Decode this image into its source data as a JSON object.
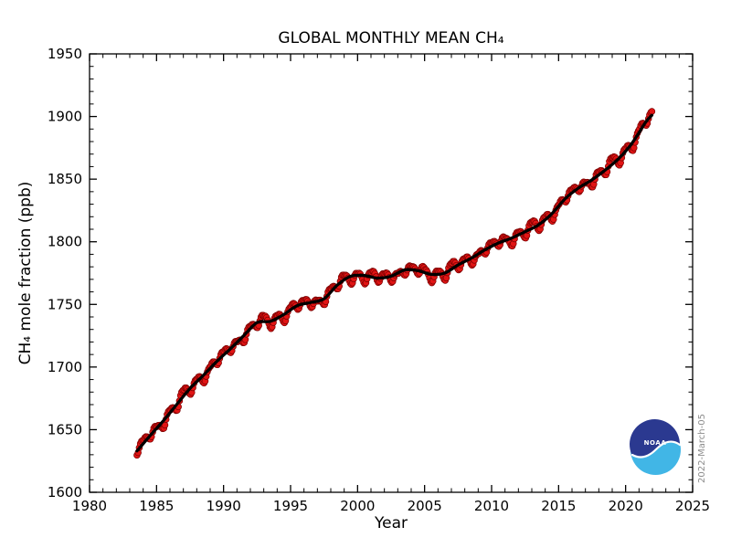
{
  "logo": {
    "text": "NOAA",
    "dark_color": "#2b3990",
    "light_color": "#41b6e6"
  },
  "chart_data": {
    "type": "scatter",
    "title": "GLOBAL MONTHLY MEAN CH₄",
    "xlabel": "Year",
    "ylabel": "CH₄ mole fraction (ppb)",
    "date_stamp": "2022-March-05",
    "xlim": [
      1980,
      2025
    ],
    "ylim": [
      1600,
      1950
    ],
    "x_major_ticks": [
      1980,
      1985,
      1990,
      1995,
      2000,
      2005,
      2010,
      2015,
      2020,
      2025
    ],
    "x_minor_step": 1,
    "y_major_ticks": [
      1600,
      1650,
      1700,
      1750,
      1800,
      1850,
      1900,
      1950
    ],
    "y_minor_step": 10,
    "grid": false,
    "legend": "none",
    "styles": {
      "dot_fill": "#e11414",
      "dot_edge": "#7a0000",
      "dot_radius": 3.4,
      "connector_color": "#d01010",
      "connector_width": 1.1,
      "trend_color": "#000000",
      "trend_width": 3.3,
      "axis_color": "#000000"
    },
    "series": [
      {
        "name": "Monthly mean CH4 (red points)",
        "render": "points-with-connector",
        "model": {
          "basis": "trend_knots",
          "start_year": 1983,
          "start_month": 7,
          "end_year": 2021,
          "end_month": 12,
          "seasonal_ppb_by_month": [
            2.1,
            2.7,
            2.2,
            0.7,
            -1.4,
            -3.7,
            -4.9,
            -3.9,
            -0.9,
            1.7,
            2.8,
            2.7
          ],
          "wiggle": {
            "a1": 1.6,
            "f1": 2.17,
            "a2": 1.1,
            "f2": 5.31
          },
          "note": "monthly value = linear interpolation of trend knots + seasonal offset + wiggle"
        }
      },
      {
        "name": "Deseasonalized trend (black line)",
        "render": "smooth-line",
        "x": [
          1983.54,
          1984.5,
          1985.5,
          1986.5,
          1987.5,
          1988.5,
          1989.5,
          1990.5,
          1991.5,
          1992.5,
          1993.5,
          1994.5,
          1995.5,
          1996.5,
          1997.5,
          1998.5,
          1999.5,
          2000.5,
          2001.5,
          2002.5,
          2003.5,
          2004.5,
          2005.5,
          2006.5,
          2007.5,
          2008.5,
          2009.5,
          2010.5,
          2011.5,
          2012.5,
          2013.5,
          2014.5,
          2015.5,
          2016.5,
          2017.5,
          2018.5,
          2019.5,
          2020.5,
          2021.5,
          2021.96
        ],
        "y": [
          1633,
          1645,
          1657,
          1670,
          1683,
          1693.5,
          1704.5,
          1714.5,
          1725,
          1735.5,
          1736.5,
          1742,
          1749,
          1751.5,
          1754.5,
          1765.5,
          1772.5,
          1773,
          1771,
          1772.5,
          1777.5,
          1777,
          1774,
          1775,
          1781.5,
          1787,
          1793.5,
          1799,
          1803,
          1808,
          1813.5,
          1822.5,
          1834.5,
          1843,
          1849.5,
          1857.5,
          1866.5,
          1879,
          1895.5,
          1901
        ]
      }
    ]
  }
}
